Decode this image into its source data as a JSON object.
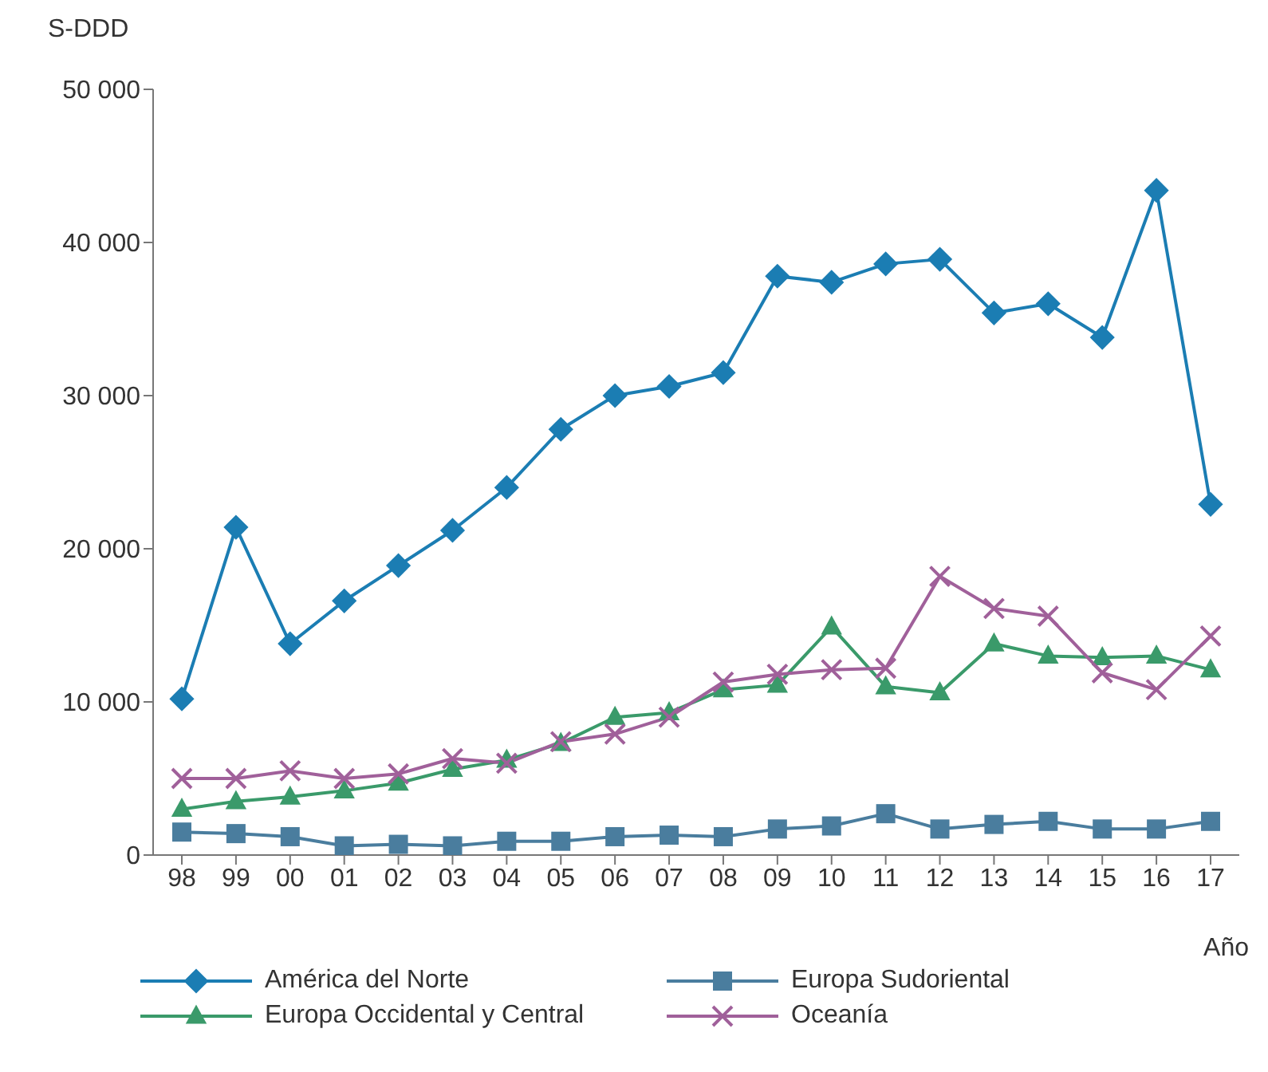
{
  "chart_data": {
    "type": "line",
    "ylabel": "S-DDD",
    "xlabel": "Año",
    "categories": [
      "98",
      "99",
      "00",
      "01",
      "02",
      "03",
      "04",
      "05",
      "06",
      "07",
      "08",
      "09",
      "10",
      "11",
      "12",
      "13",
      "14",
      "15",
      "16",
      "17"
    ],
    "ylim": [
      0,
      50000
    ],
    "yticks": [
      {
        "value": 0,
        "label": "0"
      },
      {
        "value": 10000,
        "label": "10 000"
      },
      {
        "value": 20000,
        "label": "20 000"
      },
      {
        "value": 30000,
        "label": "30 000"
      },
      {
        "value": 40000,
        "label": "40 000"
      },
      {
        "value": 50000,
        "label": "50 000"
      }
    ],
    "grid": false,
    "legend": "bottom",
    "line_style": "solid",
    "series": [
      {
        "name": "América del Norte",
        "color": "#1b7db3",
        "marker": "diamond",
        "values": [
          10200,
          21400,
          13800,
          16600,
          18900,
          21200,
          24000,
          27800,
          30000,
          30600,
          31500,
          37800,
          37400,
          38600,
          38900,
          35400,
          36000,
          33800,
          43400,
          22900
        ]
      },
      {
        "name": "Europa Sudoriental",
        "color": "#4a7d9e",
        "marker": "square",
        "values": [
          1500,
          1400,
          1200,
          600,
          700,
          600,
          900,
          900,
          1200,
          1300,
          1200,
          1700,
          1900,
          2700,
          1700,
          2000,
          2200,
          1700,
          1700,
          2200
        ]
      },
      {
        "name": "Europa Occidental y Central",
        "color": "#3a9a6a",
        "marker": "triangle",
        "values": [
          3000,
          3500,
          3800,
          4200,
          4700,
          5600,
          6200,
          7300,
          9000,
          9300,
          10800,
          11100,
          14900,
          11000,
          10600,
          13800,
          13000,
          12900,
          13000,
          12100
        ]
      },
      {
        "name": "Oceanía",
        "color": "#a0609a",
        "marker": "cross",
        "values": [
          5000,
          5000,
          5500,
          5000,
          5300,
          6300,
          6000,
          7400,
          7900,
          9000,
          11300,
          11800,
          12100,
          12200,
          18200,
          16100,
          15600,
          11900,
          10800,
          14300
        ]
      }
    ]
  }
}
